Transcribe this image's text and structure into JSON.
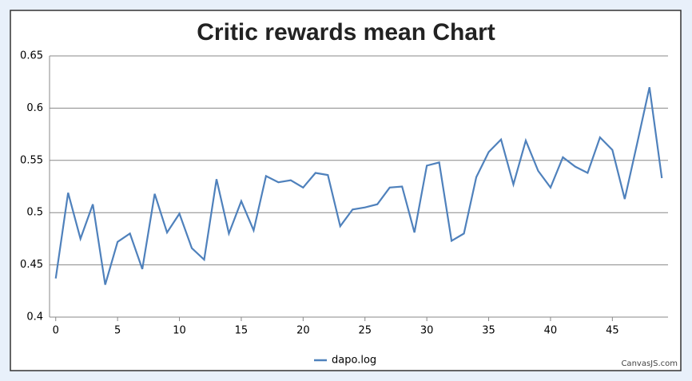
{
  "chart_data": {
    "type": "line",
    "title": "Critic rewards mean Chart",
    "x": [
      0,
      1,
      2,
      3,
      4,
      5,
      6,
      7,
      8,
      9,
      10,
      11,
      12,
      13,
      14,
      15,
      16,
      17,
      18,
      19,
      20,
      21,
      22,
      23,
      24,
      25,
      26,
      27,
      28,
      29,
      30,
      31,
      32,
      33,
      34,
      35,
      36,
      37,
      38,
      39,
      40,
      41,
      42,
      43,
      44,
      45,
      46,
      47,
      48,
      49
    ],
    "series": [
      {
        "name": "dapo.log",
        "color": "#4f81bc",
        "values": [
          0.437,
          0.519,
          0.475,
          0.508,
          0.431,
          0.472,
          0.48,
          0.446,
          0.518,
          0.481,
          0.499,
          0.466,
          0.455,
          0.532,
          0.48,
          0.511,
          0.483,
          0.535,
          0.529,
          0.531,
          0.524,
          0.538,
          0.536,
          0.487,
          0.503,
          0.505,
          0.508,
          0.524,
          0.525,
          0.481,
          0.545,
          0.548,
          0.473,
          0.48,
          0.534,
          0.558,
          0.57,
          0.527,
          0.569,
          0.54,
          0.524,
          0.553,
          0.544,
          0.538,
          0.572,
          0.56,
          0.513,
          0.566,
          0.62,
          0.533
        ]
      }
    ],
    "xlim": [
      -0.5,
      49.5
    ],
    "xticks": [
      0,
      5,
      10,
      15,
      20,
      25,
      30,
      35,
      40,
      45
    ],
    "ylim": [
      0.4,
      0.65
    ],
    "yticks": [
      0.4,
      0.45,
      0.5,
      0.55,
      0.6,
      0.65
    ],
    "grid": true,
    "legend": "bottom",
    "credit": "CanvasJS.com"
  }
}
